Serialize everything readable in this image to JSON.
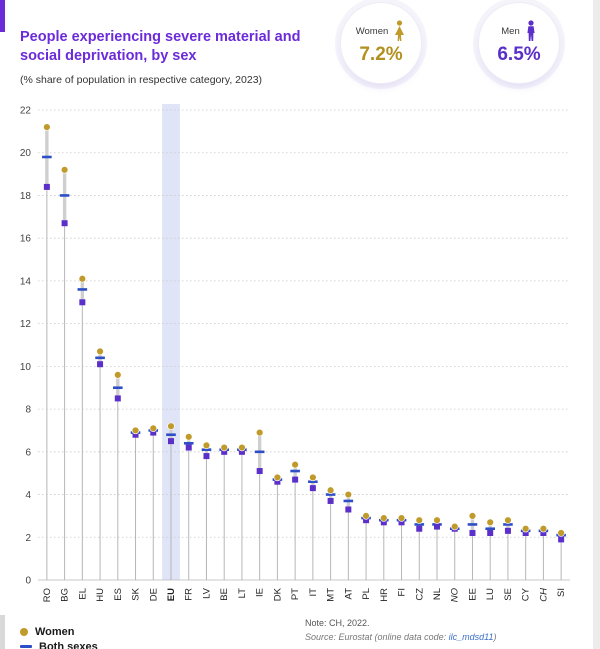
{
  "header": {
    "title": "People experiencing severe material and social deprivation, by sex",
    "subtitle": "(% share of population in respective category, 2023)"
  },
  "stats": {
    "women": {
      "label": "Women",
      "value": "7.2%"
    },
    "men": {
      "label": "Men",
      "value": "6.5%"
    }
  },
  "legend": {
    "women": "Women",
    "both": "Both sexes"
  },
  "notes": {
    "note": "Note: CH, 2022.",
    "source_prefix": "Source: Eurostat (online data code: ",
    "source_link": "ilc_mdsd11",
    "source_suffix": ")"
  },
  "colors": {
    "accent_purple": "#6c2bd9",
    "women_text": "#b2901f",
    "women_marker": "#c09a2b",
    "men": "#5b2fc9",
    "both": "#2d4ec7",
    "grid": "#c9c9c9",
    "stem": "#b6b6b6",
    "range": "#cfcfcf",
    "highlight": "#dfe4f7"
  },
  "chart_data": {
    "type": "scatter",
    "title": "People experiencing severe material and social deprivation, by sex",
    "ylabel": "% share of population",
    "year": "2023",
    "categories": [
      "RO",
      "BG",
      "EL",
      "HU",
      "ES",
      "SK",
      "DE",
      "EU",
      "FR",
      "LV",
      "BE",
      "LT",
      "IE",
      "DK",
      "PT",
      "IT",
      "MT",
      "AT",
      "PL",
      "HR",
      "FI",
      "CZ",
      "NL",
      "NO",
      "EE",
      "LU",
      "SE",
      "CY",
      "CH",
      "SI"
    ],
    "series": [
      {
        "name": "Women",
        "values": [
          21.2,
          19.2,
          14.1,
          10.7,
          9.6,
          7.0,
          7.1,
          7.2,
          6.7,
          6.3,
          6.2,
          6.2,
          6.9,
          4.8,
          5.4,
          4.8,
          4.2,
          4.0,
          3.0,
          2.9,
          2.9,
          2.8,
          2.8,
          2.5,
          3.0,
          2.7,
          2.8,
          2.4,
          2.4,
          2.2
        ]
      },
      {
        "name": "Men",
        "values": [
          18.4,
          16.7,
          13.0,
          10.1,
          8.5,
          6.8,
          6.9,
          6.5,
          6.2,
          5.8,
          6.0,
          6.0,
          5.1,
          4.6,
          4.7,
          4.3,
          3.7,
          3.3,
          2.8,
          2.7,
          2.7,
          2.4,
          2.5,
          2.4,
          2.2,
          2.2,
          2.3,
          2.2,
          2.2,
          1.9
        ]
      },
      {
        "name": "Both sexes",
        "values": [
          19.8,
          18.0,
          13.6,
          10.4,
          9.0,
          6.9,
          7.0,
          6.8,
          6.4,
          6.1,
          6.1,
          6.1,
          6.0,
          4.7,
          5.1,
          4.6,
          4.0,
          3.7,
          2.9,
          2.8,
          2.8,
          2.6,
          2.6,
          2.4,
          2.6,
          2.4,
          2.6,
          2.3,
          2.3,
          2.1
        ]
      }
    ],
    "ylim": [
      0,
      22
    ],
    "ytick_step": 2,
    "grid": "dotted-horizontal",
    "highlight_category": "EU",
    "bold_categories": [
      "EU"
    ],
    "italic_categories": [
      "NO",
      "CH"
    ],
    "legend_position": "bottom-left"
  }
}
